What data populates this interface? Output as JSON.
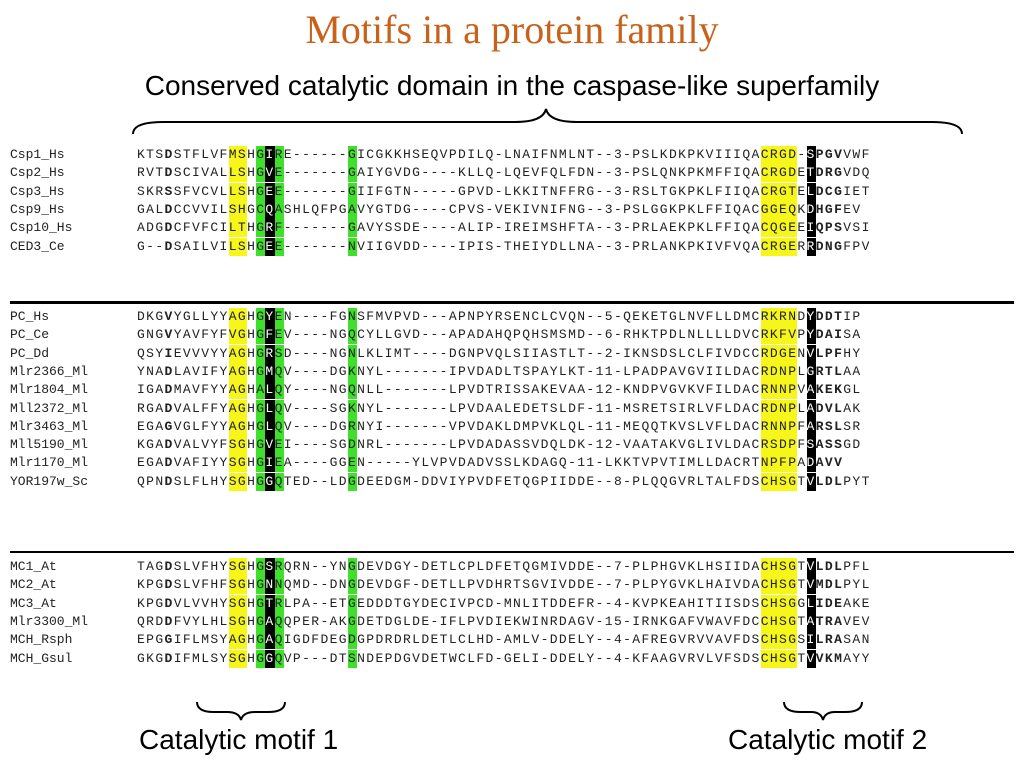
{
  "title": "Motifs in a protein family",
  "subtitle": "Conserved catalytic domain in the caspase-like superfamily",
  "motif_labels": [
    "Catalytic motif 1",
    "Catalytic motif 2"
  ],
  "colors": {
    "title": "#c8621a",
    "conserved_hydrophobic": "#f7f61a",
    "conserved_glycine": "#3fe02c",
    "catalytic_residue": "#000000"
  },
  "alignment": {
    "groups": [
      {
        "rows": [
          {
            "name": "Csp1_Hs",
            "seq": "KTSDSTFLVFMSHGIRE------GICGKKHSEQVPDILQ-LNAIFNMLNT--3-PSLKDKPKVIIIQACRGD-SPGVVWF"
          },
          {
            "name": "Csp2_Hs",
            "seq": "RVTDSCIVALLSHGVE-------GAIYGVDG----KLLQ-LQEVFQLFDN--3-PSLQNKPKMFFIQACRGDETDRGVDQ"
          },
          {
            "name": "Csp3_Hs",
            "seq": "SKRSSFVCVLLSHGEE-------GIIFGTN-----GPVD-LKKITNFFRG--3-RSLTGKPKLFIIQACRGTELDCGIET"
          },
          {
            "name": "Csp9_Hs",
            "seq": "GALDCCVVILSHGCQASHLQFPGAVYGTDG----CPVS-VEKIVNIFNG--3-PSLGGKPKLFFIQACGGEQKDHGFEV"
          },
          {
            "name": "Csp10_Hs",
            "seq": "ADGDCFVFCILTHGRF-------GAVYSSDE----ALIP-IREIMSHFTA--3-PRLAEKPKLFFIQACQGEEIQPSVSI"
          },
          {
            "name": "CED3_Ce",
            "seq": "G--DSAILVILSHGEE-------NVIIGVDD----IPIS-THEIYDLLNA--3-PRLANKPKIVFVQACRGERRDNGFPV"
          }
        ]
      },
      {
        "rows": [
          {
            "name": "PC_Hs",
            "seq": "DKGVYGLLYYAGHGYEN----FGNSFMVPVD---APNPYRSENCLCVQN--5-QEKETGLNVFLLDMCRKRNDYDDTIP"
          },
          {
            "name": "PC_Ce",
            "seq": "GNGVYAVFYFVGHGFEV----NGQCYLLGVD---APADAHQPQHSMSMD--6-RHKTPDLNLLLLDVCRKFVPYDAISA"
          },
          {
            "name": "PC_Dd",
            "seq": "QSYIEVVVYYAGHGRSD----NGNLKLIMT----DGNPVQLSIIASTLT--2-IKNSDSLCLFIVDCCRDGENVLPFHY"
          },
          {
            "name": "Mlr2366_Ml",
            "seq": "YNADLAVIFYAGHGMQV----DGKNYL-------IPVDADLTSPAYLKT-11-LPADPAVGVIILDACRDNPLGRTLAA"
          },
          {
            "name": "Mlr1804_Ml",
            "seq": "IGADMAVFYYAGHALQY----NGQNLL-------LPVDTRISSAKEVAA-12-KNDPVGVKVFILDACRNNPVAKEKGL"
          },
          {
            "name": "Mll2372_Ml",
            "seq": "RGADVALFFYAGHGLQV----SGKNYL-------LPVDAALEDETSLDF-11-MSRETSIRLVFLDACRDNPLADVLAK"
          },
          {
            "name": "Mlr3463_Ml",
            "seq": "EGAGVGLFYYAGHGLQV----DGRNYI-------VPVDAKLDMPVKLQL-11-MEQQTKVSLVFLDACRNNPFARSLSR"
          },
          {
            "name": "Mll5190_Ml",
            "seq": "KGADVALVYFSGHGVEI----SGDNRL-------LPVDADASSVDQLDK-12-VAATAKVGLIVLDACRSDPFSASSGD"
          },
          {
            "name": "Mlr1170_Ml",
            "seq": "EGADVAFIYYSGHGIEA----GGEN-----YLVPVDADVSSLKDAGQ-11-LKKTVPVTIMLLDACRTNPFPADAVV"
          },
          {
            "name": "YOR197w_Sc",
            "seq": "QPNDSLFLHYSGHGGQTED--LDGDEEDGM-DDVIYPVDFETQGPIIDDE--8-PLQQGVRLTALFDSCHSGTVLDLPYT"
          }
        ]
      },
      {
        "rows": [
          {
            "name": "MC1_At",
            "seq": "TAGDSLVFHYSGHGSRQRN--YNGDEVDGY-DETLCPLDFETQGMIVDDE--7-PLPHGVKLHSIIDACHSGTVLDLPFL"
          },
          {
            "name": "MC2_At",
            "seq": "KPGDSLVFHFSGHGNNQMD--DNGDEVDGF-DETLLPVDHRTSGVIVDDE--7-PLPYGVKLHAIVDACHSGTVMDLPYL"
          },
          {
            "name": "MC3_At",
            "seq": "KPGDVLVVHYSGHGTRLPA--ETGEDDDTGYDECIVPCD-MNLITDDEFR--4-KVPKEAHITIISDSCHSGGLIDEAKE"
          },
          {
            "name": "Mlr3300_Ml",
            "seq": "QRDDFVYLHLSGHGAQQPER-AKGDETDGLDE-IFLPVDIEKWINRDAGV-15-IRNKGAFVWAVFDCCHSGTATRAVEV"
          },
          {
            "name": "MCH_Rsph",
            "seq": "EPGGIFLMSYAGHGAQIGDFDEGDGPDRDRLDETLCLHD-AMLV-DDELY--4-AFREGVRVVAVFDSCHSGSILRASAN"
          },
          {
            "name": "MCH_Gsul",
            "seq": "GKGDIFMLSYSGHGGQVP---DTSNDEPDGVDETWCLFD-GELI-DDELY--4-KFAAGVRVLVFSDSCHSGTVVKMAYY"
          }
        ]
      }
    ]
  }
}
